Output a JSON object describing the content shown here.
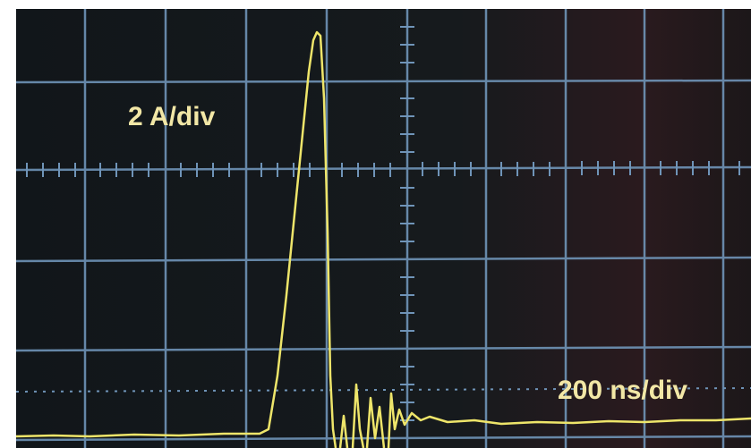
{
  "labels": {
    "vertical_scale": "2 A/div",
    "horizontal_scale": "200 ns/div"
  }
}
